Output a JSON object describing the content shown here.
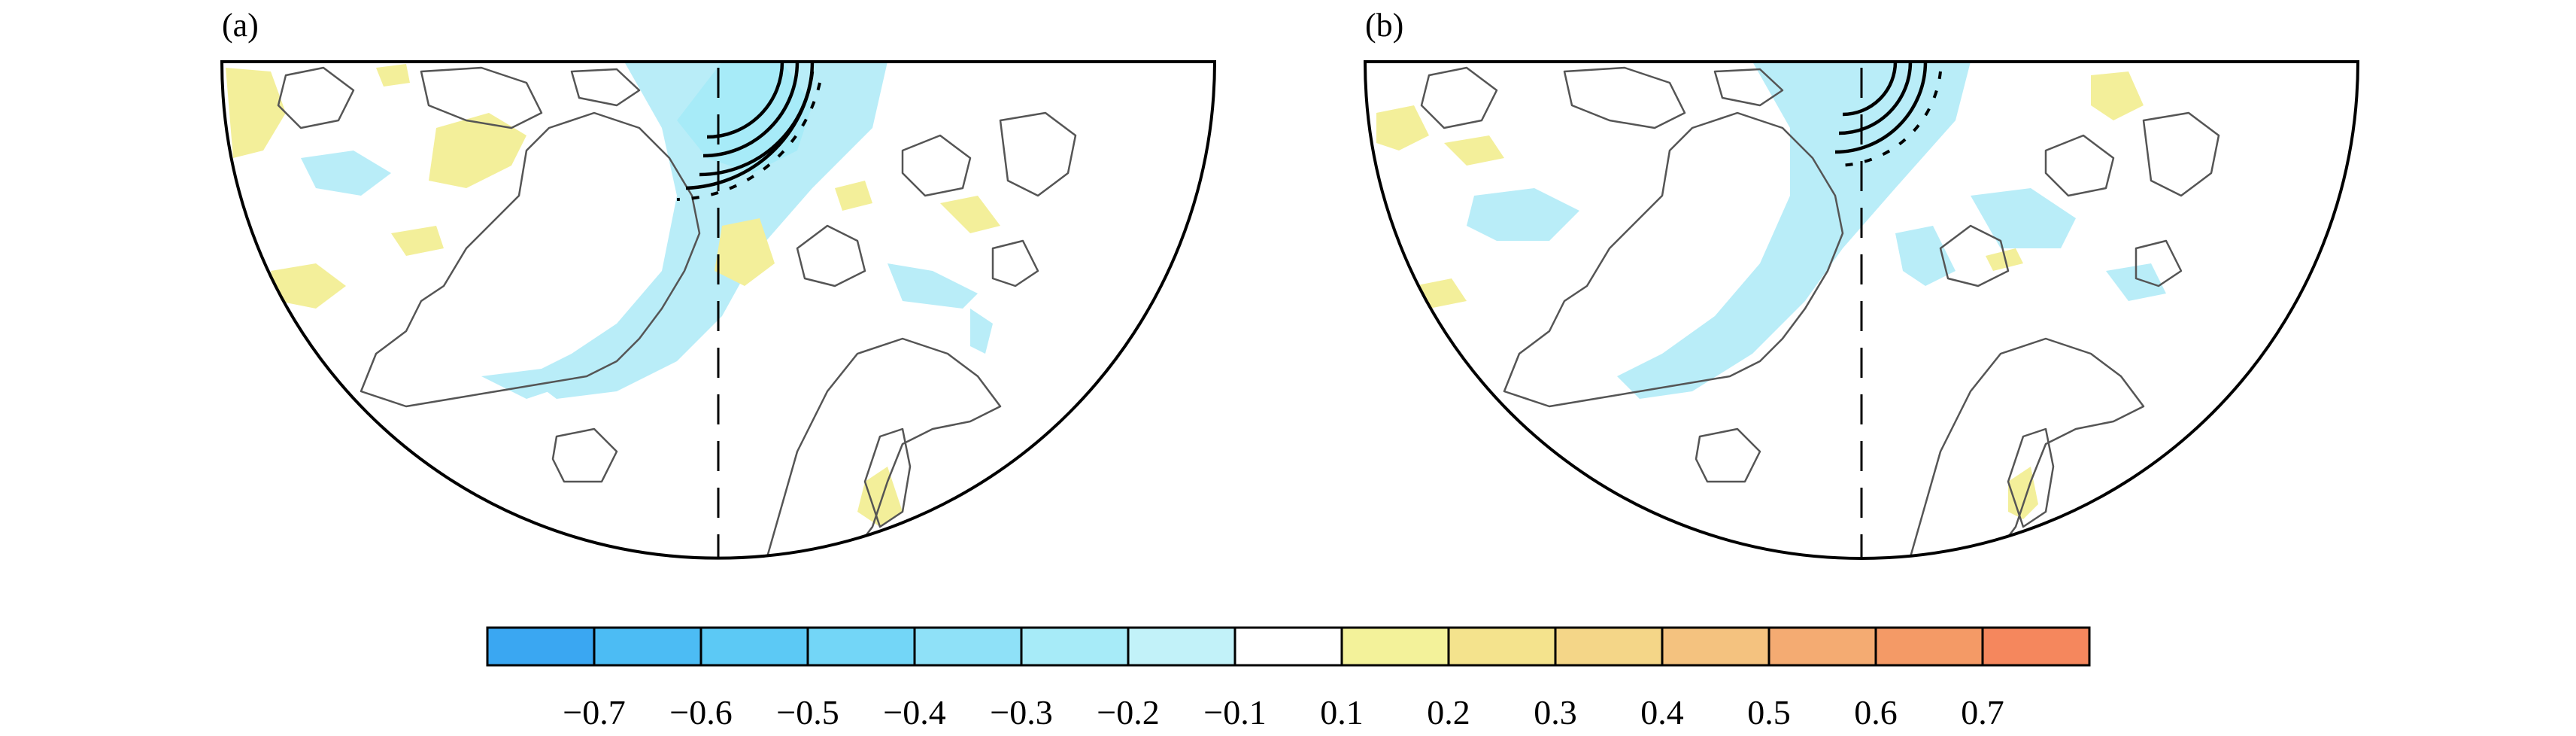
{
  "panels": [
    {
      "id": "a",
      "label": "(a)"
    },
    {
      "id": "b",
      "label": "(b)"
    }
  ],
  "colorbar": {
    "ticks": [
      "−0.7",
      "−0.6",
      "−0.5",
      "−0.4",
      "−0.3",
      "−0.2",
      "−0.1",
      "0.1",
      "0.2",
      "0.3",
      "0.4",
      "0.5",
      "0.6",
      "0.7"
    ],
    "colors": [
      "#3aa7f2",
      "#4cbcf4",
      "#5cc9f5",
      "#73d6f7",
      "#8fe1f8",
      "#a7ebf8",
      "#c2f2f9",
      "#ffffff",
      "#f3f29a",
      "#f4e38d",
      "#f4d688",
      "#f4c27f",
      "#f4ab72",
      "#f49a66",
      "#f5875d"
    ]
  },
  "colors": {
    "negative_shading": "#b9edf8",
    "positive_shading": "#f3ef9a",
    "coastline": "#555555",
    "frame": "#000000"
  }
}
